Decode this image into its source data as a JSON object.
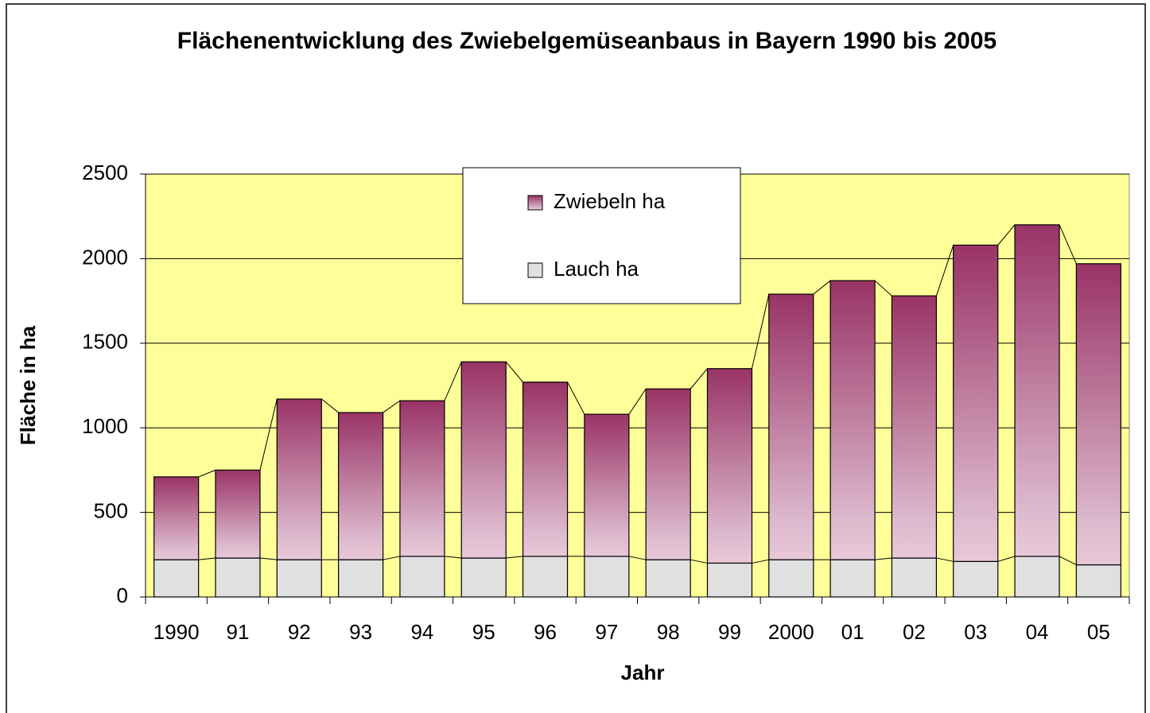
{
  "chart_data": {
    "type": "stacked_bar",
    "title": "Flächenentwicklung des Zwiebelgemüseanbaus in Bayern 1990 bis 2005",
    "x_label": "Jahr",
    "y_label": "Fläche in ha",
    "categories": [
      "1990",
      "91",
      "92",
      "93",
      "94",
      "95",
      "96",
      "97",
      "98",
      "99",
      "2000",
      "01",
      "02",
      "03",
      "04",
      "05"
    ],
    "series": [
      {
        "name": "Lauch ha",
        "color": "#e0e0e0",
        "values": [
          220,
          230,
          220,
          220,
          240,
          230,
          240,
          240,
          220,
          200,
          220,
          220,
          230,
          210,
          240,
          190
        ]
      },
      {
        "name": "Zwiebeln ha",
        "color": "#993366",
        "values": [
          490,
          520,
          950,
          870,
          920,
          1160,
          1030,
          840,
          1010,
          1150,
          1570,
          1650,
          1550,
          1870,
          1960,
          1780
        ]
      }
    ],
    "ylim": [
      0,
      2500
    ],
    "yticks": [
      0,
      500,
      1000,
      1500,
      2000,
      2500
    ],
    "grid": true,
    "plot_background": "#ffff99",
    "legend": "top"
  }
}
